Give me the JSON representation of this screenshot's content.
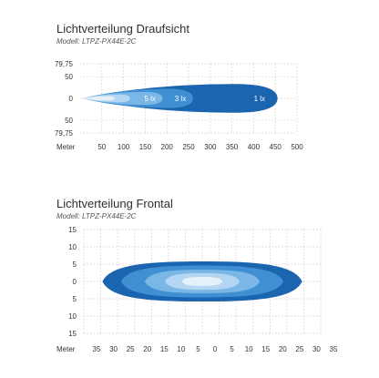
{
  "chart_data": [
    {
      "type": "area",
      "title": "Lichtverteilung Draufsicht",
      "subtitle": "Modell: LTPZ-PX44E-2C",
      "xlabel": "Meter",
      "ylabel": "",
      "x_ticks": [
        "50",
        "100",
        "150",
        "200",
        "250",
        "300",
        "350",
        "400",
        "450",
        "500"
      ],
      "y_ticks": [
        "79,75",
        "50",
        "0",
        "50",
        "79,75"
      ],
      "xlim": [
        0,
        500
      ],
      "ylim": [
        -79.75,
        79.75
      ],
      "grid": true,
      "isolines": [
        {
          "name": "1 lx",
          "reach_m": 455,
          "half_width_m": 33,
          "color": "#1a64b0"
        },
        {
          "name": "3 lx",
          "reach_m": 260,
          "half_width_m": 22,
          "color": "#3f8fd2"
        },
        {
          "name": "5 lx",
          "reach_m": 190,
          "half_width_m": 15,
          "color": "#7ab7e6"
        },
        {
          "name": "",
          "reach_m": 115,
          "half_width_m": 9,
          "color": "#b4d6f2"
        },
        {
          "name": "",
          "reach_m": 80,
          "half_width_m": 5,
          "color": "#e4f0fa"
        }
      ]
    },
    {
      "type": "area",
      "title": "Lichtverteilung Frontal",
      "subtitle": "Modell: LTPZ-PX44E-2C",
      "xlabel": "Meter",
      "ylabel": "",
      "x_ticks": [
        "35",
        "30",
        "25",
        "20",
        "15",
        "10",
        "5",
        "0",
        "5",
        "10",
        "15",
        "20",
        "25",
        "30",
        "35"
      ],
      "y_ticks": [
        "15",
        "10",
        "5",
        "0",
        "5",
        "10",
        "15"
      ],
      "xlim": [
        -35,
        35
      ],
      "ylim": [
        -15,
        15
      ],
      "grid": true,
      "isolines": [
        {
          "name": "",
          "half_width_m": 29.5,
          "half_height_m": 5.8,
          "color": "#1a64b0"
        },
        {
          "name": "",
          "half_width_m": 24,
          "half_height_m": 4.6,
          "color": "#3f8fd2"
        },
        {
          "name": "",
          "half_width_m": 17,
          "half_height_m": 3.4,
          "color": "#7ab7e6"
        },
        {
          "name": "",
          "half_width_m": 11,
          "half_height_m": 2.4,
          "color": "#b4d6f2"
        },
        {
          "name": "",
          "half_width_m": 6,
          "half_height_m": 1.3,
          "color": "#e4f0fa"
        }
      ]
    }
  ]
}
